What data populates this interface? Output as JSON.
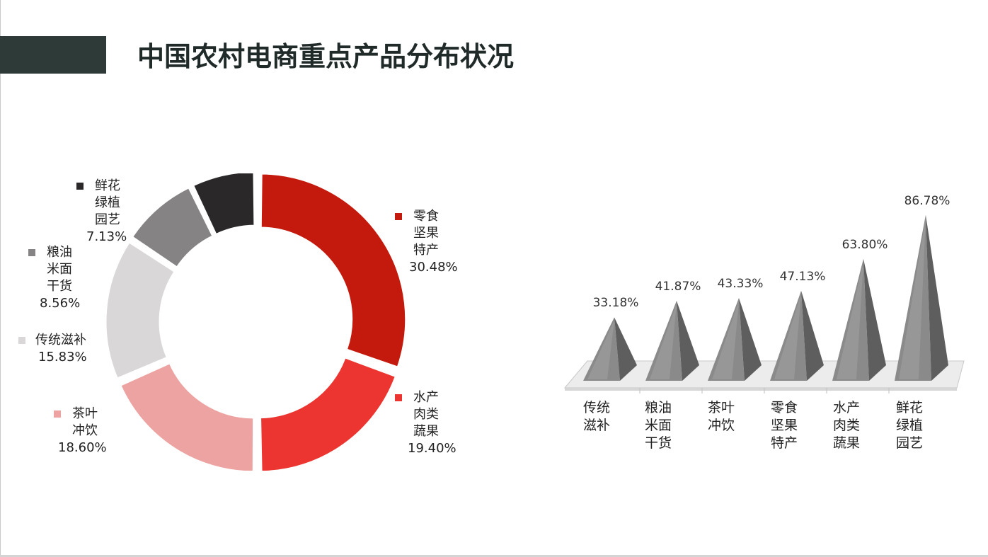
{
  "title": "中国农村电商重点产品分布状况",
  "colors": {
    "title_bar": "#2d3a38",
    "pyramid_face": "#8a8a8a",
    "pyramid_side": "#5e5e5e",
    "pyramid_top": "#b0b0b0"
  },
  "chart_data": [
    {
      "type": "pie",
      "donut": true,
      "slices": [
        {
          "label": [
            "零食",
            "坚果",
            "特产"
          ],
          "value_text": "30.48%",
          "value": 30.48,
          "color": "#c41a0d"
        },
        {
          "label": [
            "水产",
            "肉类",
            "蔬果"
          ],
          "value_text": "19.40%",
          "value": 19.4,
          "color": "#ec3530"
        },
        {
          "label": [
            "茶叶",
            "冲饮"
          ],
          "value_text": "18.60%",
          "value": 18.6,
          "color": "#eca3a1"
        },
        {
          "label": [
            "传统滋补"
          ],
          "value_text": "15.83%",
          "value": 15.83,
          "color": "#d9d7d8"
        },
        {
          "label": [
            "粮油",
            "米面",
            "干货"
          ],
          "value_text": "8.56%",
          "value": 8.56,
          "color": "#858384"
        },
        {
          "label": [
            "鲜花",
            "绿植",
            "园艺"
          ],
          "value_text": "7.13%",
          "value": 7.13,
          "color": "#2b282a"
        }
      ]
    },
    {
      "type": "bar",
      "style": "3d-pyramid",
      "categories": [
        [
          "传统",
          "滋补"
        ],
        [
          "粮油",
          "米面",
          "干货"
        ],
        [
          "茶叶",
          "冲饮"
        ],
        [
          "零食",
          "坚果",
          "特产"
        ],
        [
          "水产",
          "肉类",
          "蔬果"
        ],
        [
          "鲜花",
          "绿植",
          "园艺"
        ]
      ],
      "values": [
        33.18,
        41.87,
        43.33,
        47.13,
        63.8,
        86.78
      ],
      "value_labels": [
        "33.18%",
        "41.87%",
        "43.33%",
        "47.13%",
        "63.80%",
        "86.78%"
      ],
      "ylim": [
        0,
        100
      ]
    }
  ]
}
